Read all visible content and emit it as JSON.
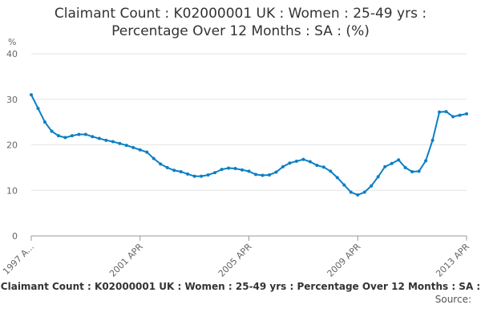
{
  "chart_data": {
    "type": "line",
    "title": "Claimant Count : K02000001 UK : Women : 25-49 yrs : Percentage Over 12 Months : SA : (%)",
    "y_unit": "%",
    "footer": "Claimant Count : K02000001 UK : Women : 25-49 yrs : Percentage Over 12 Months : SA :",
    "source": "Source:",
    "categories": [
      "1997 A...",
      null,
      null,
      null,
      null,
      null,
      null,
      null,
      null,
      null,
      null,
      null,
      null,
      null,
      null,
      null,
      "2001 APR",
      null,
      null,
      null,
      null,
      null,
      null,
      null,
      null,
      null,
      null,
      null,
      null,
      null,
      null,
      null,
      "2005 APR",
      null,
      null,
      null,
      null,
      null,
      null,
      null,
      null,
      null,
      null,
      null,
      null,
      null,
      null,
      null,
      "2009 APR",
      null,
      null,
      null,
      null,
      null,
      null,
      null,
      null,
      null,
      null,
      null,
      null,
      null,
      null,
      null,
      "2013 APR"
    ],
    "series": [
      {
        "name": "Claimant Count",
        "color": "#0b7fc3",
        "values": [
          31,
          28,
          25,
          23,
          22,
          21.6,
          22,
          22.3,
          22.3,
          21.8,
          21.4,
          21,
          20.7,
          20.3,
          19.9,
          19.4,
          18.9,
          18.4,
          17,
          15.8,
          15,
          14.4,
          14.1,
          13.6,
          13.1,
          13.1,
          13.4,
          13.9,
          14.6,
          14.9,
          14.8,
          14.5,
          14.2,
          13.5,
          13.3,
          13.4,
          14,
          15.2,
          16,
          16.4,
          16.8,
          16.3,
          15.5,
          15.1,
          14.2,
          12.8,
          11.2,
          9.6,
          9,
          9.6,
          11,
          13,
          15.2,
          15.9,
          16.7,
          15,
          14.1,
          14.2,
          16.5,
          21,
          27.2,
          27.3,
          26.2,
          26.5,
          26.8
        ]
      }
    ],
    "ylim": [
      0,
      40
    ],
    "yticks": [
      0,
      10,
      20,
      30,
      40
    ],
    "grid": true
  }
}
